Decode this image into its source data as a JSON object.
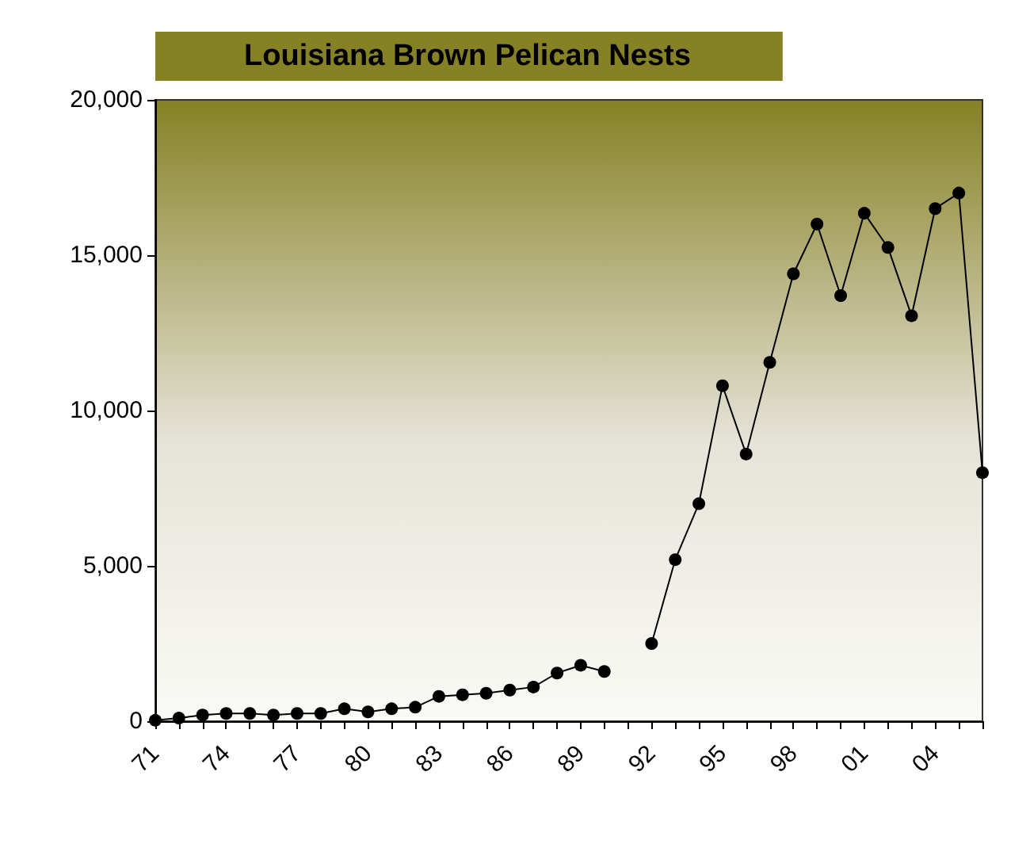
{
  "chart_data": {
    "type": "line",
    "title": "Louisiana Brown Pelican Nests",
    "categories": [
      "71",
      null,
      null,
      "74",
      null,
      null,
      "77",
      null,
      null,
      "80",
      null,
      null,
      "83",
      null,
      null,
      "86",
      null,
      null,
      "89",
      null,
      null,
      "92",
      null,
      null,
      "95",
      null,
      null,
      "98",
      null,
      null,
      "01",
      null,
      null,
      "04",
      null,
      null
    ],
    "series": [
      {
        "color": "#000000",
        "values": [
          30,
          100,
          200,
          250,
          250,
          200,
          250,
          250,
          400,
          300,
          400,
          450,
          800,
          850,
          900,
          1000,
          1100,
          1550,
          1800,
          1600,
          null,
          2500,
          5200,
          7000,
          10800,
          8600,
          11550,
          14400,
          16000,
          13700,
          16350,
          15250,
          13050,
          16500,
          17000,
          8000
        ]
      }
    ],
    "ylim": [
      0,
      20000
    ],
    "yticks": [
      {
        "value": 0,
        "label": "0"
      },
      {
        "value": 5000,
        "label": "5,000"
      },
      {
        "value": 10000,
        "label": "10,000"
      },
      {
        "value": 15000,
        "label": "15,000"
      },
      {
        "value": 20000,
        "label": "20,000"
      }
    ],
    "grid": false,
    "marker": "circle",
    "line_style": "solid"
  }
}
